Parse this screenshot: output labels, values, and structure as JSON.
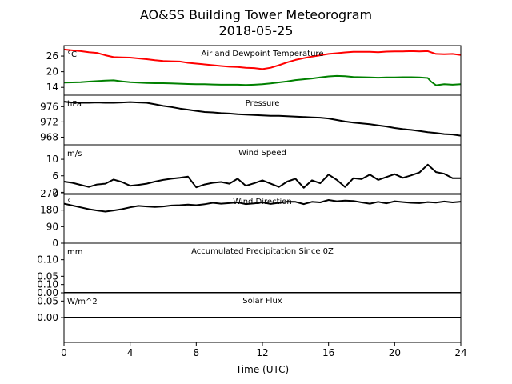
{
  "chart_data": {
    "type": "line",
    "title": "AO&SS Building Tower Meteorogram",
    "subtitle": "2018-05-25",
    "xlabel": "Time (UTC)",
    "x_ticks": [
      "0",
      "4",
      "8",
      "12",
      "16",
      "20",
      "24"
    ],
    "xlim": [
      0,
      24
    ],
    "panels": [
      {
        "title": "Air and Dewpoint Temperature",
        "unit": "°C",
        "ylim": [
          11,
          30
        ],
        "yticks": [
          14,
          20,
          26
        ],
        "series": [
          {
            "color": "#ff0000",
            "x": [
              0,
              0.5,
              1,
              1.5,
              2,
              2.5,
              3,
              3.5,
              4,
              4.5,
              5,
              5.5,
              6,
              6.5,
              7,
              7.5,
              8,
              8.5,
              9,
              9.5,
              10,
              10.5,
              11,
              11.5,
              12,
              12.5,
              13,
              13.5,
              14,
              14.5,
              15,
              15.5,
              16,
              16.5,
              17,
              17.5,
              18,
              18.5,
              19,
              19.5,
              20,
              20.5,
              21,
              21.5,
              22,
              22.5,
              23,
              23.5,
              24
            ],
            "y": [
              28.5,
              28.2,
              27.9,
              27.5,
              27.2,
              26.3,
              25.6,
              25.5,
              25.4,
              25.1,
              24.8,
              24.4,
              24.1,
              24.0,
              23.9,
              23.4,
              23.1,
              22.8,
              22.5,
              22.2,
              21.9,
              21.8,
              21.5,
              21.4,
              21.0,
              21.5,
              22.5,
              23.6,
              24.5,
              25.2,
              25.8,
              26.3,
              26.8,
              27.1,
              27.4,
              27.6,
              27.6,
              27.6,
              27.5,
              27.7,
              27.8,
              27.8,
              27.9,
              27.8,
              27.9,
              26.8,
              26.7,
              26.8,
              26.4
            ]
          },
          {
            "color": "#008000",
            "x": [
              0,
              0.5,
              1,
              1.5,
              2,
              2.5,
              3,
              3.5,
              4,
              4.5,
              5,
              5.5,
              6,
              6.5,
              7,
              7.5,
              8,
              8.5,
              9,
              9.5,
              10,
              10.5,
              11,
              11.5,
              12,
              12.5,
              13,
              13.5,
              14,
              14.5,
              15,
              15.5,
              16,
              16.5,
              17,
              17.5,
              18,
              18.5,
              19,
              19.5,
              20,
              20.5,
              21,
              21.5,
              22,
              22.2,
              22.5,
              23,
              23.5,
              24
            ],
            "y": [
              15.8,
              15.9,
              16.0,
              16.2,
              16.4,
              16.6,
              16.7,
              16.3,
              16.0,
              15.8,
              15.7,
              15.6,
              15.6,
              15.5,
              15.4,
              15.3,
              15.2,
              15.2,
              15.1,
              15.0,
              15.0,
              15.0,
              14.9,
              15.0,
              15.2,
              15.5,
              15.9,
              16.3,
              16.8,
              17.1,
              17.4,
              17.8,
              18.2,
              18.4,
              18.3,
              18.0,
              17.9,
              17.8,
              17.7,
              17.8,
              17.8,
              17.9,
              17.9,
              17.8,
              17.6,
              16.2,
              14.8,
              15.2,
              15.0,
              15.2
            ]
          }
        ]
      },
      {
        "title": "Pressure",
        "unit": "hPa",
        "ylim": [
          966,
          979
        ],
        "yticks": [
          968,
          972,
          976
        ],
        "series": [
          {
            "color": "#000000",
            "x": [
              0,
              0.5,
              1,
              1.5,
              2,
              2.5,
              3,
              3.5,
              4,
              4.5,
              5,
              5.5,
              6,
              6.5,
              7,
              7.5,
              8,
              8.5,
              9,
              9.5,
              10,
              10.5,
              11,
              11.5,
              12,
              12.5,
              13,
              13.5,
              14,
              14.5,
              15,
              15.5,
              16,
              16.5,
              17,
              17.5,
              18,
              18.5,
              19,
              19.5,
              20,
              20.5,
              21,
              21.5,
              22,
              22.5,
              23,
              23.5,
              24
            ],
            "y": [
              977.3,
              977.1,
              977.0,
              977.0,
              977.1,
              977.0,
              977.0,
              977.1,
              977.2,
              977.1,
              977.0,
              976.6,
              976.2,
              975.9,
              975.5,
              975.2,
              974.9,
              974.6,
              974.5,
              974.3,
              974.2,
              974.0,
              973.9,
              973.8,
              973.7,
              973.6,
              973.6,
              973.5,
              973.4,
              973.3,
              973.2,
              973.1,
              972.9,
              972.5,
              972.1,
              971.8,
              971.6,
              971.4,
              971.1,
              970.8,
              970.4,
              970.1,
              969.9,
              969.6,
              969.3,
              969.1,
              968.8,
              968.7,
              968.4
            ]
          }
        ]
      },
      {
        "title": "Wind Speed",
        "unit": "m/s",
        "ylim": [
          1.5,
          13.5
        ],
        "yticks": [
          2,
          6,
          10
        ],
        "series": [
          {
            "color": "#000000",
            "x": [
              0,
              0.5,
              1,
              1.5,
              2,
              2.5,
              3,
              3.5,
              4,
              4.5,
              5,
              5.5,
              6,
              6.5,
              7,
              7.5,
              8,
              8.5,
              9,
              9.5,
              10,
              10.5,
              11,
              11.5,
              12,
              12.5,
              13,
              13.5,
              14,
              14.5,
              15,
              15.5,
              16,
              16.5,
              17,
              17.5,
              18,
              18.5,
              19,
              19.5,
              20,
              20.5,
              21,
              21.5,
              22,
              22.5,
              23,
              23.5,
              24
            ],
            "y": [
              4.6,
              4.3,
              3.8,
              3.3,
              3.9,
              4.1,
              5.1,
              4.5,
              3.6,
              3.8,
              4.1,
              4.6,
              5.0,
              5.3,
              5.5,
              5.8,
              3.2,
              3.9,
              4.3,
              4.5,
              4.1,
              5.3,
              3.6,
              4.2,
              4.9,
              4.1,
              3.3,
              4.6,
              5.3,
              3.1,
              4.9,
              4.2,
              6.3,
              5.0,
              3.3,
              5.4,
              5.2,
              6.3,
              5.0,
              5.7,
              6.4,
              5.5,
              6.1,
              6.8,
              8.7,
              6.9,
              6.5,
              5.4,
              5.4
            ]
          }
        ]
      },
      {
        "title": "Wind Direction",
        "unit": "°",
        "ylim": [
          0,
          270
        ],
        "yticks": [
          0,
          90,
          180,
          270
        ],
        "series": [
          {
            "color": "#000000",
            "x": [
              0,
              0.5,
              1,
              1.5,
              2,
              2.5,
              3,
              3.5,
              4,
              4.5,
              5,
              5.5,
              6,
              6.5,
              7,
              7.5,
              8,
              8.5,
              9,
              9.5,
              10,
              10.5,
              11,
              11.5,
              12,
              12.5,
              13,
              13.5,
              14,
              14.5,
              15,
              15.5,
              16,
              16.5,
              17,
              17.5,
              18,
              18.5,
              19,
              19.5,
              20,
              20.5,
              21,
              21.5,
              22,
              22.5,
              23,
              23.5,
              24
            ],
            "y": [
              215,
              205,
              195,
              185,
              178,
              172,
              178,
              185,
              195,
              203,
              200,
              197,
              200,
              205,
              207,
              210,
              207,
              212,
              220,
              215,
              218,
              222,
              213,
              217,
              222,
              214,
              220,
              226,
              225,
              213,
              225,
              222,
              235,
              228,
              232,
              230,
              222,
              215,
              225,
              217,
              228,
              224,
              220,
              218,
              224,
              221,
              227,
              222,
              226
            ]
          }
        ]
      },
      {
        "title": "Accumulated Precipitation Since 0Z",
        "unit": "mm",
        "ylim": [
          0,
          0.15
        ],
        "yticks": [
          0.0,
          0.05,
          0.1
        ],
        "ytick_labels": [
          "0.00",
          "0.05",
          "0.10"
        ],
        "series": [
          {
            "color": "#000000",
            "x": [
              0,
              24
            ],
            "y": [
              0,
              0
            ]
          }
        ]
      },
      {
        "title": "Solar Flux",
        "unit": "W/m^2",
        "ylim": [
          -0.075,
          0.075
        ],
        "yticks": [
          0.0,
          0.05,
          0.1
        ],
        "ytick_labels": [
          "0.00",
          "0.05",
          "0.10"
        ],
        "series": [
          {
            "color": "#000000",
            "x": [
              0,
              24
            ],
            "y": [
              0,
              0
            ]
          }
        ]
      }
    ]
  }
}
